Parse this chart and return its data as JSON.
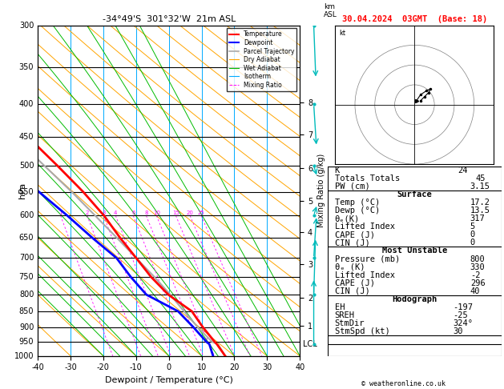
{
  "title_left": "-34°49'S  301°32'W  21m ASL",
  "title_right": "30.04.2024  03GMT  (Base: 18)",
  "xlabel": "Dewpoint / Temperature (°C)",
  "ylabel_left": "hPa",
  "background_color": "#ffffff",
  "isotherm_color": "#00aaff",
  "dry_adiabat_color": "#ffa500",
  "wet_adiabat_color": "#00bb00",
  "mixing_ratio_color": "#ff00ff",
  "temp_color": "#ff0000",
  "dewp_color": "#0000ff",
  "parcel_color": "#aaaaaa",
  "grid_color": "#000000",
  "pressure_levels": [
    300,
    350,
    400,
    450,
    500,
    550,
    600,
    650,
    700,
    750,
    800,
    850,
    900,
    950,
    1000
  ],
  "km_ticks": [
    1,
    2,
    3,
    4,
    5,
    6,
    7,
    8
  ],
  "km_pressures": [
    895,
    810,
    715,
    638,
    568,
    505,
    447,
    397
  ],
  "lcl_pressure": 958,
  "mixing_ratio_values": [
    1,
    2,
    3,
    4,
    6,
    8,
    10,
    15,
    20,
    25
  ],
  "skew_factor": 1.0,
  "stats": {
    "K": 24,
    "Totals_Totals": 45,
    "PW_cm": 3.15,
    "Surface_Temp": 17.2,
    "Surface_Dewp": 13.5,
    "Surface_theta_e": 317,
    "Surface_LI": 5,
    "Surface_CAPE": 0,
    "Surface_CIN": 0,
    "MU_Pressure": 800,
    "MU_theta_e": 330,
    "MU_LI": -2,
    "MU_CAPE": 296,
    "MU_CIN": 40,
    "EH": -197,
    "SREH": -25,
    "StmDir": "324°",
    "StmSpd": 30
  },
  "temperature_profile": {
    "pressure": [
      1000,
      958,
      950,
      900,
      850,
      800,
      750,
      700,
      650,
      600,
      550,
      500,
      450,
      400,
      350,
      300
    ],
    "temp": [
      17.2,
      15.5,
      15.0,
      12.4,
      10.2,
      4.2,
      0.2,
      -3.0,
      -6.5,
      -9.8,
      -14.5,
      -20.5,
      -27.5,
      -35.5,
      -44.5,
      -52.5
    ],
    "dewp": [
      13.5,
      13.2,
      12.5,
      9.5,
      6.0,
      -2.5,
      -6.0,
      -9.0,
      -15.0,
      -21.0,
      -28.0,
      -36.0,
      -43.0,
      -49.0,
      -53.0,
      -56.0
    ]
  },
  "parcel_profile": {
    "pressure": [
      1000,
      958,
      950,
      900,
      850,
      800,
      750,
      700,
      650,
      600,
      550,
      500,
      450,
      400,
      350,
      300
    ],
    "temp": [
      17.2,
      15.8,
      14.2,
      10.8,
      7.8,
      4.8,
      1.2,
      -3.0,
      -7.5,
      -12.5,
      -18.0,
      -24.5,
      -31.5,
      -39.0,
      -47.5,
      -56.0
    ]
  },
  "wind_barbs": {
    "pressure": [
      300,
      400,
      500,
      600,
      700,
      800,
      958
    ],
    "speed_kt": [
      35,
      30,
      25,
      20,
      15,
      10,
      5
    ],
    "direction": [
      324,
      310,
      280,
      260,
      230,
      210,
      180
    ],
    "color": "#00bbbb"
  },
  "hodograph_u": [
    3,
    5,
    7,
    8,
    6,
    3,
    1
  ],
  "hodograph_v": [
    2,
    4,
    6,
    8,
    7,
    5,
    2
  ]
}
